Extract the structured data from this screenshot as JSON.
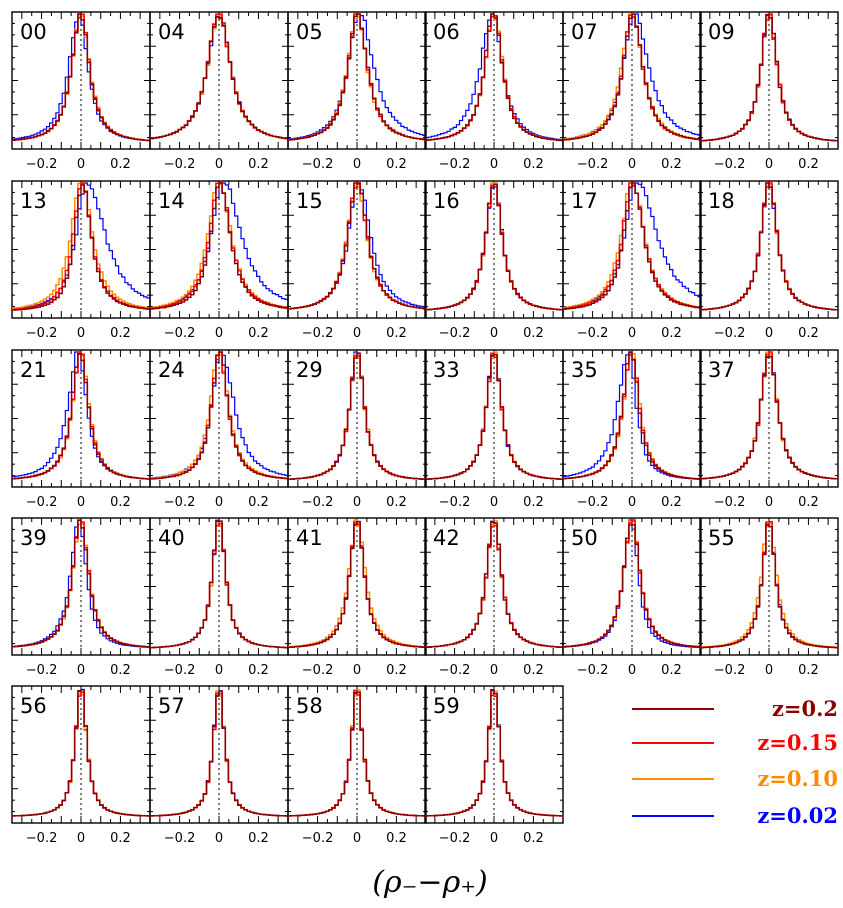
{
  "chart_data": {
    "type": "line",
    "layout_note": "small multiples: histogram panels, one per field",
    "xlabel": "(ρ₋−ρ₊)",
    "xlim": [
      -0.35,
      0.35
    ],
    "xticks": [
      -0.2,
      0,
      0.2
    ],
    "xtick_labels": [
      "−0.2",
      "0",
      "0.2"
    ],
    "grid": false,
    "legend_position": "bottom-right",
    "series": [
      {
        "name": "z=0.2",
        "color": "#8b0000"
      },
      {
        "name": "z=0.15",
        "color": "#ff0000"
      },
      {
        "name": "z=0.10",
        "color": "#ff8c00"
      },
      {
        "name": "z=0.02",
        "color": "#0000ff"
      }
    ],
    "panels": [
      {
        "label": "00",
        "center": 0.0,
        "width": [
          0.055,
          0.055,
          0.055,
          0.06
        ],
        "blue_skew": -0.02,
        "tail": 0.1
      },
      {
        "label": "04",
        "center": 0.0,
        "width": [
          0.07,
          0.07,
          0.07,
          0.07
        ],
        "blue_skew": 0.0,
        "tail": 0.2
      },
      {
        "label": "05",
        "center": 0.0,
        "width": [
          0.06,
          0.06,
          0.06,
          0.075
        ],
        "blue_skew": 0.03,
        "tail": 0.15
      },
      {
        "label": "06",
        "center": 0.0,
        "width": [
          0.055,
          0.055,
          0.055,
          0.07
        ],
        "blue_skew": -0.02,
        "tail": 0.2
      },
      {
        "label": "07",
        "center": 0.0,
        "width": [
          0.06,
          0.06,
          0.065,
          0.075
        ],
        "blue_skew": 0.03,
        "tail": 0.15
      },
      {
        "label": "09",
        "center": 0.0,
        "width": [
          0.05,
          0.05,
          0.05,
          0.05
        ],
        "blue_skew": 0.0,
        "tail": 0.05
      },
      {
        "label": "13",
        "center": 0.0,
        "width": [
          0.05,
          0.055,
          0.065,
          0.08
        ],
        "blue_skew": 0.07,
        "tail": 0.3
      },
      {
        "label": "14",
        "center": 0.0,
        "width": [
          0.06,
          0.065,
          0.07,
          0.085
        ],
        "blue_skew": 0.05,
        "tail": 0.35
      },
      {
        "label": "15",
        "center": 0.0,
        "width": [
          0.06,
          0.06,
          0.06,
          0.065
        ],
        "blue_skew": 0.02,
        "tail": 0.15
      },
      {
        "label": "16",
        "center": 0.0,
        "width": [
          0.05,
          0.05,
          0.05,
          0.05
        ],
        "blue_skew": 0.0,
        "tail": 0.1
      },
      {
        "label": "17",
        "center": 0.0,
        "width": [
          0.06,
          0.065,
          0.07,
          0.09
        ],
        "blue_skew": 0.06,
        "tail": 0.35
      },
      {
        "label": "18",
        "center": 0.0,
        "width": [
          0.05,
          0.05,
          0.05,
          0.05
        ],
        "blue_skew": 0.0,
        "tail": 0.05
      },
      {
        "label": "21",
        "center": 0.0,
        "width": [
          0.05,
          0.05,
          0.05,
          0.06
        ],
        "blue_skew": -0.03,
        "tail": 0.1
      },
      {
        "label": "24",
        "center": 0.0,
        "width": [
          0.05,
          0.05,
          0.055,
          0.065
        ],
        "blue_skew": 0.03,
        "tail": 0.15
      },
      {
        "label": "29",
        "center": 0.0,
        "width": [
          0.045,
          0.045,
          0.045,
          0.045
        ],
        "blue_skew": 0.0,
        "tail": 0.05
      },
      {
        "label": "33",
        "center": 0.0,
        "width": [
          0.045,
          0.045,
          0.045,
          0.045
        ],
        "blue_skew": 0.0,
        "tail": 0.05
      },
      {
        "label": "35",
        "center": 0.0,
        "width": [
          0.05,
          0.05,
          0.05,
          0.06
        ],
        "blue_skew": -0.04,
        "tail": 0.15
      },
      {
        "label": "37",
        "center": 0.0,
        "width": [
          0.05,
          0.05,
          0.05,
          0.05
        ],
        "blue_skew": 0.0,
        "tail": 0.05
      },
      {
        "label": "39",
        "center": 0.0,
        "width": [
          0.05,
          0.05,
          0.05,
          0.05
        ],
        "blue_skew": -0.02,
        "tail": 0.05
      },
      {
        "label": "40",
        "center": 0.0,
        "width": [
          0.04,
          0.04,
          0.04,
          0.04
        ],
        "blue_skew": 0.0,
        "tail": 0.05
      },
      {
        "label": "41",
        "center": 0.0,
        "width": [
          0.045,
          0.045,
          0.05,
          0.045
        ],
        "blue_skew": 0.0,
        "tail": 0.05
      },
      {
        "label": "42",
        "center": 0.0,
        "width": [
          0.045,
          0.045,
          0.045,
          0.045
        ],
        "blue_skew": 0.0,
        "tail": 0.05
      },
      {
        "label": "50",
        "center": 0.0,
        "width": [
          0.05,
          0.05,
          0.05,
          0.045
        ],
        "blue_skew": -0.01,
        "tail": 0.05
      },
      {
        "label": "55",
        "center": 0.0,
        "width": [
          0.04,
          0.04,
          0.045,
          0.04
        ],
        "blue_skew": 0.0,
        "tail": 0.05
      },
      {
        "label": "56",
        "center": 0.0,
        "width": [
          0.035,
          0.035,
          0.035,
          0.035
        ],
        "blue_skew": 0.0,
        "tail": 0.05
      },
      {
        "label": "57",
        "center": 0.0,
        "width": [
          0.035,
          0.035,
          0.035,
          0.035
        ],
        "blue_skew": 0.0,
        "tail": 0.05
      },
      {
        "label": "58",
        "center": 0.0,
        "width": [
          0.035,
          0.035,
          0.035,
          0.035
        ],
        "blue_skew": 0.0,
        "tail": 0.05
      },
      {
        "label": "59",
        "center": 0.0,
        "width": [
          0.035,
          0.035,
          0.035,
          0.035
        ],
        "blue_skew": 0.0,
        "tail": 0.05
      }
    ]
  }
}
